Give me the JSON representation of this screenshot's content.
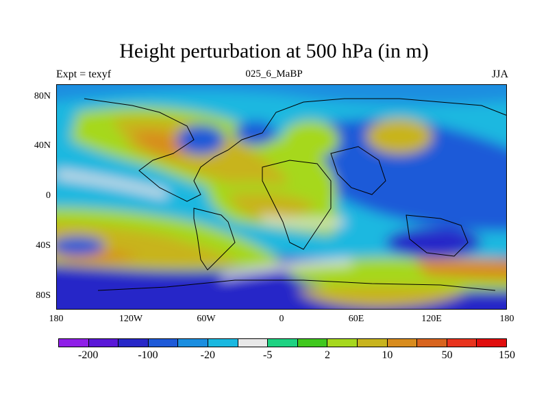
{
  "header": {
    "title": "Height perturbation at 500 hPa (in m)",
    "left_label": "Expt = texyf",
    "center_label": "025_6_MaBP",
    "right_label": "JJA"
  },
  "axes": {
    "y_ticks": [
      "80N",
      "40N",
      "0",
      "40S",
      "80S"
    ],
    "x_ticks": [
      "180",
      "120W",
      "60W",
      "0",
      "60E",
      "120E",
      "180"
    ]
  },
  "colorbar": {
    "colors": [
      "#8f1fe8",
      "#5a18d8",
      "#2727c8",
      "#1e5ad8",
      "#1b8ee0",
      "#1ab8e0",
      "#e8e8e8",
      "#1ed282",
      "#40c81e",
      "#a6d81e",
      "#c8b41e",
      "#d88c1e",
      "#d8641e",
      "#e8341e",
      "#e00e0e"
    ],
    "labels": [
      "-200",
      "-100",
      "-20",
      "-5",
      "2",
      "10",
      "50",
      "150"
    ]
  },
  "chart_data": {
    "type": "heatmap",
    "title": "Height perturbation at 500 hPa (in m)",
    "subtitle_left": "Expt = texyf",
    "subtitle_center": "025_6_MaBP",
    "subtitle_right": "JJA",
    "x_range": [
      -180,
      180
    ],
    "y_range": [
      -90,
      90
    ],
    "x_tick_labels": [
      "180",
      "120W",
      "60W",
      "0",
      "60E",
      "120E",
      "180"
    ],
    "y_tick_labels": [
      "80N",
      "40N",
      "0",
      "40S",
      "80S"
    ],
    "colorbar_labels": [
      "-200",
      "-100",
      "-20",
      "-5",
      "2",
      "10",
      "50",
      "150"
    ],
    "features": [
      {
        "name": "positive_ridge_north_america",
        "lon": -100,
        "lat": 50,
        "value": 60
      },
      {
        "name": "positive_africa_europe",
        "lon": 10,
        "lat": 20,
        "value": 40
      },
      {
        "name": "positive_south_pacific_band",
        "lon": -150,
        "lat": -50,
        "value": 60
      },
      {
        "name": "positive_north_asia_cell",
        "lon": 90,
        "lat": 55,
        "value": 40
      },
      {
        "name": "positive_east_asia_cell",
        "lon": 160,
        "lat": 45,
        "value": 10
      },
      {
        "name": "negative_southern_ocean",
        "lon": -50,
        "lat": -75,
        "value": -30
      },
      {
        "name": "negative_indian_pacific",
        "lon": 120,
        "lat": 5,
        "value": -20
      },
      {
        "name": "negative_australia_south",
        "lon": 140,
        "lat": -35,
        "value": -40
      },
      {
        "name": "negative_north_pacific",
        "lon": -160,
        "lat": 65,
        "value": -10
      },
      {
        "name": "negative_north_atlantic",
        "lon": -50,
        "lat": 50,
        "value": -10
      },
      {
        "name": "negative_east_pacific_subtropics",
        "lon": -140,
        "lat": 20,
        "value": -10
      }
    ]
  }
}
